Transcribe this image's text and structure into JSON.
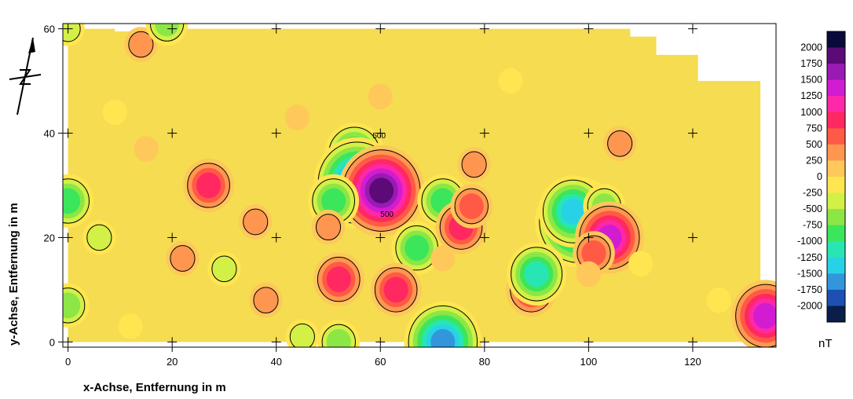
{
  "chart_data": {
    "type": "heatmap",
    "xlabel": "x-Achse, Entfernung in m",
    "ylabel": "y-Achse, Entfernung in m",
    "xlim": [
      -1,
      136
    ],
    "ylim": [
      -1,
      61
    ],
    "x_ticks": [
      0,
      20,
      40,
      60,
      80,
      100,
      120
    ],
    "y_ticks": [
      0,
      20,
      40,
      60
    ],
    "colorbar": {
      "unit": "nT",
      "labels": [
        "2000",
        "1750",
        "1500",
        "1250",
        "1000",
        "750",
        "500",
        "250",
        "0",
        "-250",
        "-500",
        "-750",
        "-1000",
        "-1250",
        "-1500",
        "-1750",
        "-2000"
      ],
      "colors": [
        "#0a0a3a",
        "#5c0a78",
        "#9a1ab4",
        "#d21cd2",
        "#ff28a8",
        "#ff2860",
        "#ff5a46",
        "#ff9650",
        "#ffc85a",
        "#ffe650",
        "#d2f046",
        "#8ce646",
        "#3ce65a",
        "#28e6b4",
        "#28d2e6",
        "#3296dc",
        "#1e50b4",
        "#0a1e4a"
      ]
    },
    "background_color": "#f5dc50",
    "contour_labels": [
      {
        "text": "500",
        "x": 58.5,
        "y": 39
      },
      {
        "text": "500",
        "x": 60,
        "y": 24
      }
    ],
    "anomalies": [
      {
        "x": 55,
        "y": 36,
        "value": -1250
      },
      {
        "x": 56,
        "y": 31,
        "value": -1600
      },
      {
        "x": 55.5,
        "y": 30.5,
        "value": -2000
      },
      {
        "x": 60,
        "y": 28,
        "value": 1700
      },
      {
        "x": 60.2,
        "y": 29,
        "value": 2000
      },
      {
        "x": 51,
        "y": 27,
        "value": -1100
      },
      {
        "x": 50,
        "y": 22,
        "value": 600
      },
      {
        "x": 72,
        "y": 27,
        "value": -900
      },
      {
        "x": 67,
        "y": 18,
        "value": -1100
      },
      {
        "x": 75.5,
        "y": 22,
        "value": 900
      },
      {
        "x": 77.5,
        "y": 26,
        "value": 700
      },
      {
        "x": 98,
        "y": 23,
        "value": -2000
      },
      {
        "x": 97,
        "y": 25,
        "value": -1500
      },
      {
        "x": 103,
        "y": 26,
        "value": -800
      },
      {
        "x": 104,
        "y": 20,
        "value": 1400
      },
      {
        "x": 101,
        "y": 17,
        "value": 800
      },
      {
        "x": 52,
        "y": 12,
        "value": 1100
      },
      {
        "x": 63,
        "y": 10,
        "value": 1100
      },
      {
        "x": 89,
        "y": 10,
        "value": 1000
      },
      {
        "x": 90,
        "y": 13,
        "value": -1300
      },
      {
        "x": 72,
        "y": 0,
        "value": -1700
      },
      {
        "x": 27,
        "y": 30,
        "value": 900
      },
      {
        "x": 0,
        "y": 27,
        "value": -1000
      },
      {
        "x": 0,
        "y": 7,
        "value": -800
      },
      {
        "x": 14,
        "y": 57,
        "value": 600
      },
      {
        "x": 19,
        "y": 61,
        "value": -800
      },
      {
        "x": 0,
        "y": 60,
        "value": -600
      },
      {
        "x": 134,
        "y": 5,
        "value": 1600
      },
      {
        "x": 36,
        "y": 23,
        "value": 450
      },
      {
        "x": 22,
        "y": 16,
        "value": 400
      },
      {
        "x": 38,
        "y": 8,
        "value": 400
      },
      {
        "x": 78,
        "y": 34,
        "value": 400
      },
      {
        "x": 106,
        "y": 38,
        "value": 400
      },
      {
        "x": 72,
        "y": 16,
        "value": 350
      },
      {
        "x": 44,
        "y": 43,
        "value": 350
      },
      {
        "x": 15,
        "y": 37,
        "value": 350
      },
      {
        "x": 100,
        "y": 13,
        "value": 350
      },
      {
        "x": 60,
        "y": 47,
        "value": 300
      },
      {
        "x": 6,
        "y": 20,
        "value": -550
      },
      {
        "x": 30,
        "y": 14,
        "value": -400
      },
      {
        "x": 9,
        "y": 44,
        "value": -300
      },
      {
        "x": 12,
        "y": 3,
        "value": -350
      },
      {
        "x": 45,
        "y": 1,
        "value": -400
      },
      {
        "x": 85,
        "y": 50,
        "value": -300
      },
      {
        "x": 110,
        "y": 15,
        "value": -300
      },
      {
        "x": 125,
        "y": 8,
        "value": -300
      },
      {
        "x": 52,
        "y": 0,
        "value": -700
      }
    ]
  }
}
